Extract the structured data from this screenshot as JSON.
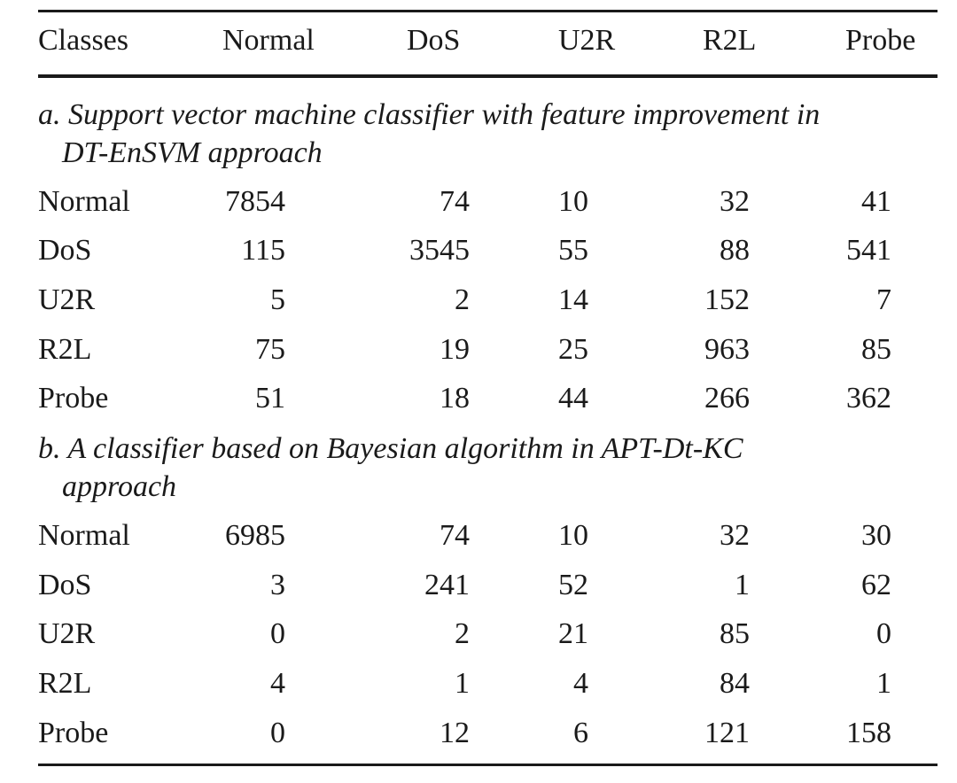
{
  "header": [
    "Classes",
    "Normal",
    "DoS",
    "U2R",
    "R2L",
    "Probe"
  ],
  "sections": [
    {
      "caption_line1": "a. Support vector machine classifier with feature improvement in",
      "caption_line2": "DT-EnSVM approach",
      "rows": [
        {
          "label": "Normal",
          "values": [
            "7854",
            "74",
            "10",
            "32",
            "41"
          ]
        },
        {
          "label": "DoS",
          "values": [
            "115",
            "3545",
            "55",
            "88",
            "541"
          ]
        },
        {
          "label": "U2R",
          "values": [
            "5",
            "2",
            "14",
            "152",
            "7"
          ]
        },
        {
          "label": "R2L",
          "values": [
            "75",
            "19",
            "25",
            "963",
            "85"
          ]
        },
        {
          "label": "Probe",
          "values": [
            "51",
            "18",
            "44",
            "266",
            "362"
          ]
        }
      ]
    },
    {
      "caption_line1": "b. A classifier based on Bayesian algorithm in APT-Dt-KC",
      "caption_line2": "approach",
      "rows": [
        {
          "label": "Normal",
          "values": [
            "6985",
            "74",
            "10",
            "32",
            "30"
          ]
        },
        {
          "label": "DoS",
          "values": [
            "3",
            "241",
            "52",
            "1",
            "62"
          ]
        },
        {
          "label": "U2R",
          "values": [
            "0",
            "2",
            "21",
            "85",
            "0"
          ]
        },
        {
          "label": "R2L",
          "values": [
            "4",
            "1",
            "4",
            "84",
            "1"
          ]
        },
        {
          "label": "Probe",
          "values": [
            "0",
            "12",
            "6",
            "121",
            "158"
          ]
        }
      ]
    }
  ]
}
